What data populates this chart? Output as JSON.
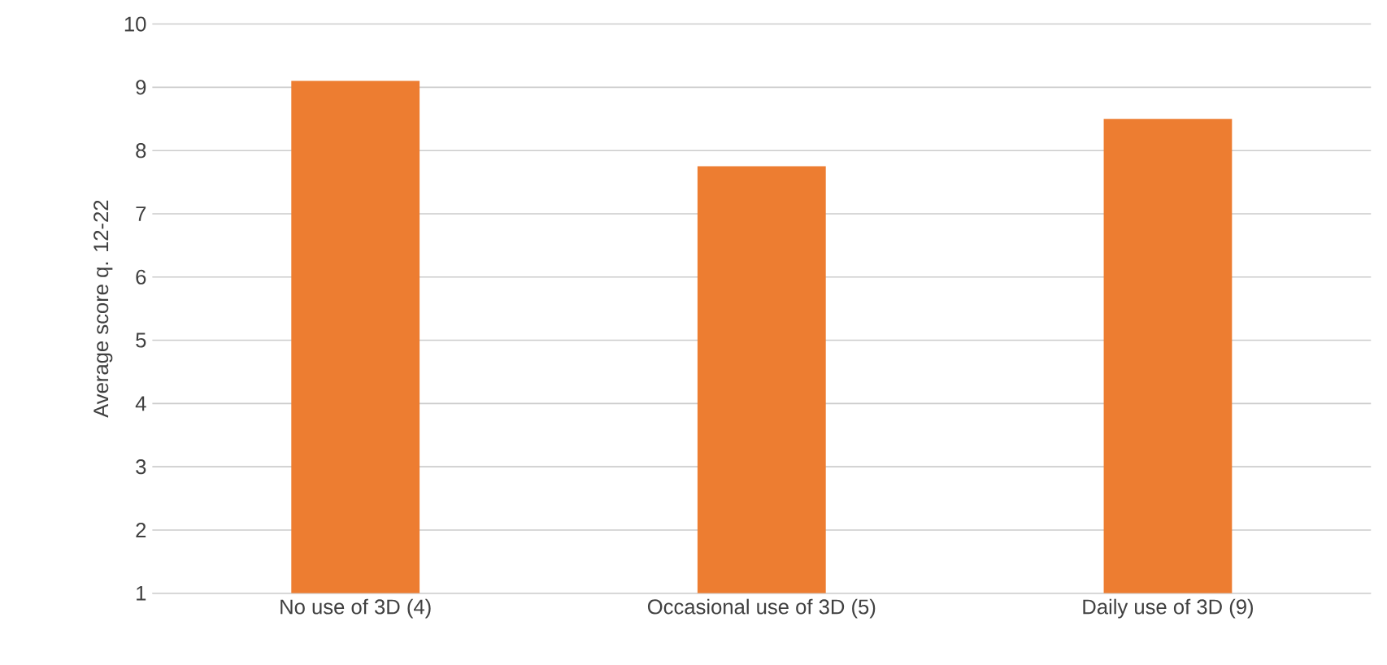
{
  "chart_data": {
    "type": "bar",
    "ylabel": "Average score q. 12-22",
    "categories": [
      "No use of 3D (4)",
      "Occasional use of 3D (5)",
      "Daily use of 3D (9)"
    ],
    "values": [
      9.1,
      7.75,
      8.5
    ],
    "color": "#ed7d31",
    "ylim": [
      1,
      10
    ],
    "yticks": [
      1,
      2,
      3,
      4,
      5,
      6,
      7,
      8,
      9,
      10
    ],
    "grid": "y"
  }
}
